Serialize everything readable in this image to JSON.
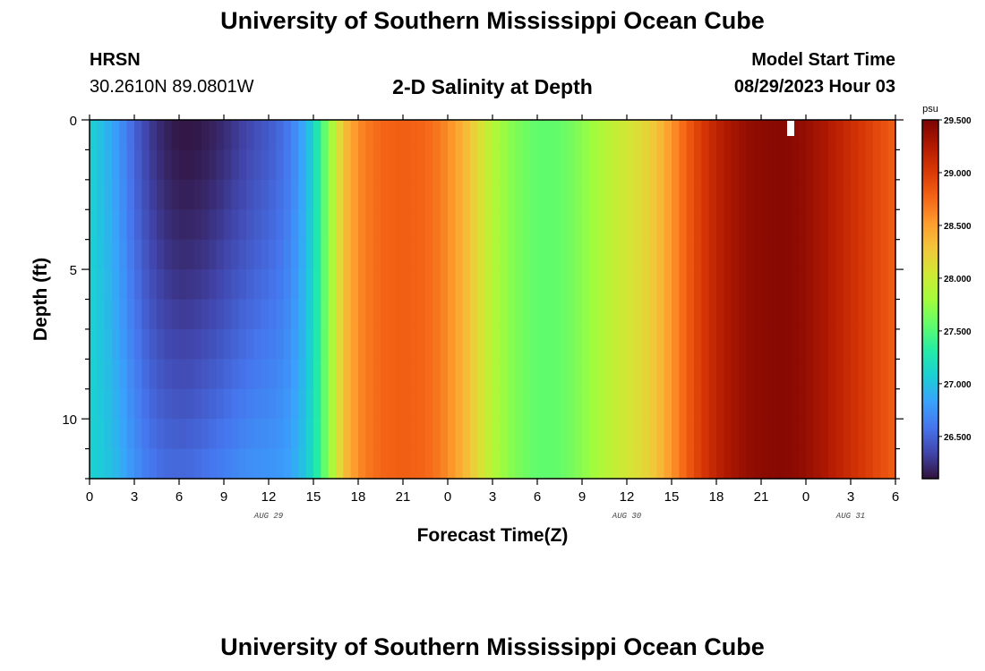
{
  "header": {
    "title": "University of Southern Mississippi Ocean Cube",
    "station": "HRSN",
    "coordinates": "30.2610N  89.0801W",
    "subtitle": "2-D Salinity at Depth",
    "model_start_label": "Model Start Time",
    "model_start_value": "08/29/2023 Hour 03"
  },
  "footer": {
    "title": "University of Southern Mississippi Ocean Cube"
  },
  "chart_data": {
    "type": "heatmap",
    "title": "2-D Salinity at Depth",
    "xlabel": "Forecast Time(Z)",
    "ylabel": "Depth (ft)",
    "x_range_hours": [
      0,
      54
    ],
    "y_range_ft": [
      0,
      12
    ],
    "y_inverted": true,
    "x_ticks": [
      "0",
      "3",
      "6",
      "9",
      "12",
      "15",
      "18",
      "21",
      "0",
      "3",
      "6",
      "9",
      "12",
      "15",
      "18",
      "21",
      "0",
      "3",
      "6"
    ],
    "y_ticks": [
      "0",
      "5",
      "10"
    ],
    "date_labels": [
      {
        "label": "AUG 29",
        "hour": 12
      },
      {
        "label": "AUG 30",
        "hour": 36
      },
      {
        "label": "AUG 31",
        "hour": 51
      }
    ],
    "colorbar": {
      "unit": "psu",
      "min": 26.1,
      "max": 29.5,
      "ticks": [
        "29.500",
        "29.000",
        "28.500",
        "28.000",
        "27.500",
        "27.000",
        "26.500"
      ],
      "colors": [
        "#30123b",
        "#4145ab",
        "#4675ed",
        "#39a2fc",
        "#1bcfd4",
        "#24eca6",
        "#61fc6c",
        "#a4fc3b",
        "#d1e834",
        "#f3c63a",
        "#fe9b2d",
        "#f36315",
        "#d93806",
        "#b11901",
        "#7a0403"
      ]
    },
    "salinity_surface_profile": [
      {
        "hour": 0,
        "psu": 27.1
      },
      {
        "hour": 1,
        "psu": 26.95
      },
      {
        "hour": 2,
        "psu": 26.75
      },
      {
        "hour": 3,
        "psu": 26.5
      },
      {
        "hour": 4,
        "psu": 26.3
      },
      {
        "hour": 5,
        "psu": 26.18
      },
      {
        "hour": 6,
        "psu": 26.12
      },
      {
        "hour": 7,
        "psu": 26.12
      },
      {
        "hour": 8,
        "psu": 26.16
      },
      {
        "hour": 9,
        "psu": 26.22
      },
      {
        "hour": 10,
        "psu": 26.3
      },
      {
        "hour": 11,
        "psu": 26.38
      },
      {
        "hour": 12,
        "psu": 26.45
      },
      {
        "hour": 13,
        "psu": 26.55
      },
      {
        "hour": 14,
        "psu": 26.75
      },
      {
        "hour": 15,
        "psu": 27.1
      },
      {
        "hour": 16,
        "psu": 27.7
      },
      {
        "hour": 17,
        "psu": 28.3
      },
      {
        "hour": 18,
        "psu": 28.6
      },
      {
        "hour": 19,
        "psu": 28.72
      },
      {
        "hour": 20,
        "psu": 28.78
      },
      {
        "hour": 21,
        "psu": 28.8
      },
      {
        "hour": 22,
        "psu": 28.78
      },
      {
        "hour": 23,
        "psu": 28.72
      },
      {
        "hour": 24,
        "psu": 28.6
      },
      {
        "hour": 25,
        "psu": 28.4
      },
      {
        "hour": 26,
        "psu": 28.15
      },
      {
        "hour": 27,
        "psu": 27.9
      },
      {
        "hour": 28,
        "psu": 27.72
      },
      {
        "hour": 29,
        "psu": 27.62
      },
      {
        "hour": 30,
        "psu": 27.55
      },
      {
        "hour": 31,
        "psu": 27.55
      },
      {
        "hour": 32,
        "psu": 27.6
      },
      {
        "hour": 33,
        "psu": 27.7
      },
      {
        "hour": 34,
        "psu": 27.82
      },
      {
        "hour": 35,
        "psu": 27.95
      },
      {
        "hour": 36,
        "psu": 28.05
      },
      {
        "hour": 37,
        "psu": 28.15
      },
      {
        "hour": 38,
        "psu": 28.3
      },
      {
        "hour": 39,
        "psu": 28.55
      },
      {
        "hour": 40,
        "psu": 28.8
      },
      {
        "hour": 41,
        "psu": 29.0
      },
      {
        "hour": 42,
        "psu": 29.18
      },
      {
        "hour": 43,
        "psu": 29.3
      },
      {
        "hour": 44,
        "psu": 29.38
      },
      {
        "hour": 45,
        "psu": 29.42
      },
      {
        "hour": 46,
        "psu": 29.44
      },
      {
        "hour": 47,
        "psu": 29.43
      },
      {
        "hour": 48,
        "psu": 29.38
      },
      {
        "hour": 49,
        "psu": 29.3
      },
      {
        "hour": 50,
        "psu": 29.2
      },
      {
        "hour": 51,
        "psu": 29.1
      },
      {
        "hour": 52,
        "psu": 29.0
      },
      {
        "hour": 53,
        "psu": 28.9
      },
      {
        "hour": 54,
        "psu": 28.8
      }
    ],
    "bottom_deviation_psu": 0.45,
    "bottom_deviation_hours": [
      0,
      16
    ],
    "legend_placement": "right",
    "grid": false
  }
}
